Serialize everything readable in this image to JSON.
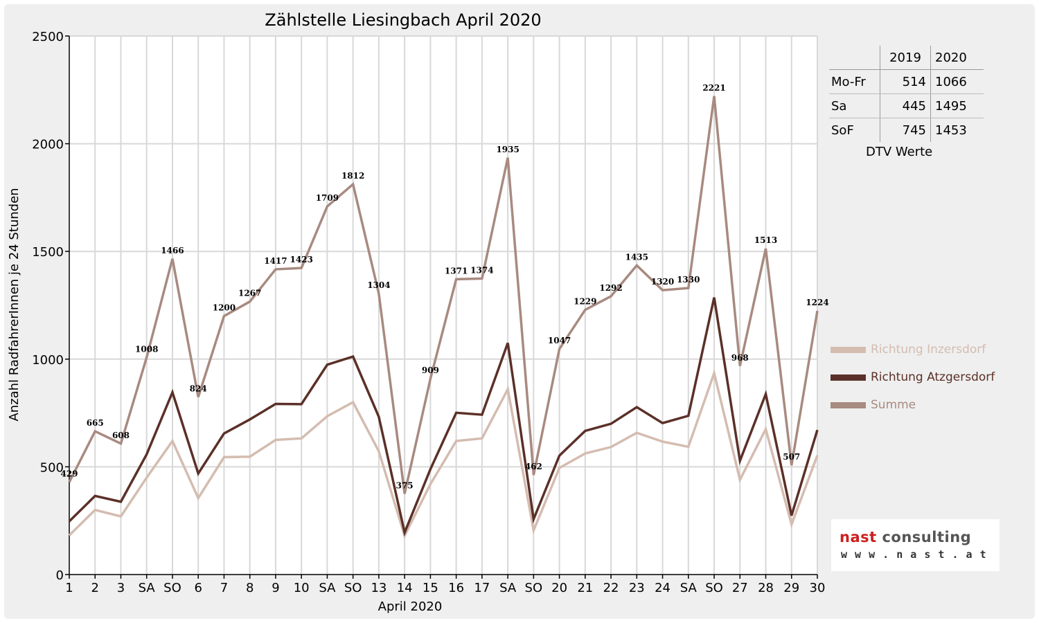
{
  "chart_data": {
    "type": "line",
    "title": "Zählstelle Liesingbach April 2020",
    "xlabel": "April 2020",
    "ylabel": "Anzahl RadfahrerInnen je 24 Stunden",
    "ylim": [
      0,
      2500
    ],
    "yticks": [
      "0",
      "500",
      "1000",
      "1500",
      "2000",
      "2500"
    ],
    "grid": true,
    "legend_position": "right",
    "x": [
      1,
      2,
      3,
      4,
      5,
      6,
      7,
      8,
      9,
      10,
      11,
      12,
      13,
      14,
      15,
      16,
      17,
      18,
      19,
      20,
      21,
      22,
      23,
      24,
      25,
      26,
      27,
      28,
      29,
      30
    ],
    "x_tick_labels": [
      "1",
      "2",
      "3",
      "SA",
      "SO",
      "6",
      "7",
      "8",
      "9",
      "10",
      "SA",
      "SO",
      "13",
      "14",
      "15",
      "16",
      "17",
      "SA",
      "SO",
      "20",
      "21",
      "22",
      "23",
      "24",
      "SA",
      "SO",
      "27",
      "28",
      "29",
      "30"
    ],
    "x_tick_colors": [
      "#000000",
      "#000000",
      "#000000",
      "#000000",
      "#e00000",
      "#000000",
      "#000000",
      "#000000",
      "#000000",
      "#000000",
      "#000000",
      "#e00000",
      "#e00000",
      "#000000",
      "#000000",
      "#000000",
      "#000000",
      "#000000",
      "#e00000",
      "#000000",
      "#000000",
      "#000000",
      "#000000",
      "#000000",
      "#000000",
      "#e00000",
      "#000000",
      "#000000",
      "#000000",
      "#000000"
    ],
    "series": [
      {
        "name": "Richtung Inzersdorf",
        "color": "#d4bcb0",
        "values": [
          182,
          300,
          270,
          450,
          620,
          355,
          545,
          547,
          625,
          632,
          735,
          800,
          572,
          180,
          420,
          620,
          632,
          860,
          205,
          495,
          562,
          592,
          658,
          617,
          593,
          935,
          440,
          675,
          233,
          553
        ]
      },
      {
        "name": "Richtung Atzgersdorf",
        "color": "#5b3028",
        "values": [
          247,
          365,
          338,
          558,
          846,
          469,
          655,
          720,
          792,
          791,
          974,
          1012,
          732,
          195,
          489,
          751,
          742,
          1075,
          257,
          552,
          667,
          700,
          777,
          703,
          737,
          1286,
          528,
          838,
          274,
          671
        ]
      },
      {
        "name": "Summe",
        "color": "#a88a80",
        "values": [
          429,
          665,
          608,
          1008,
          1466,
          824,
          1200,
          1267,
          1417,
          1423,
          1709,
          1812,
          1304,
          375,
          909,
          1371,
          1374,
          1935,
          462,
          1047,
          1229,
          1292,
          1435,
          1320,
          1330,
          2221,
          968,
          1513,
          507,
          1224
        ],
        "data_labels": [
          "429",
          "665",
          "608",
          "1008",
          "1466",
          "824",
          "1200",
          "1267",
          "1417",
          "1423",
          "1709",
          "1812",
          "1304",
          "375",
          "909",
          "1371",
          "1374",
          "1935",
          "462",
          "1047",
          "1229",
          "1292",
          "1435",
          "1320",
          "1330",
          "2221",
          "968",
          "1513",
          "507",
          "1224"
        ]
      }
    ]
  },
  "dtv_table": {
    "columns": [
      "",
      "2019",
      "2020"
    ],
    "rows": [
      {
        "label": "Mo-Fr",
        "v2019": "514",
        "v2020": "1066"
      },
      {
        "label": "Sa",
        "v2019": "445",
        "v2020": "1495"
      },
      {
        "label": "SoF",
        "v2019": "745",
        "v2020": "1453"
      }
    ],
    "caption": "DTV Werte"
  },
  "legend": [
    {
      "label": "Richtung Inzersdorf",
      "color": "#d4bcb0"
    },
    {
      "label": "Richtung Atzgersdorf",
      "color": "#5b3028"
    },
    {
      "label": "Summe",
      "color": "#a88a80"
    }
  ],
  "logo": {
    "name_part1": "nast",
    "name_part2": "consulting",
    "name_part1_color": "#cc1f1f",
    "name_part2_color": "#555555",
    "url": "w w w . n a s t . a t"
  }
}
